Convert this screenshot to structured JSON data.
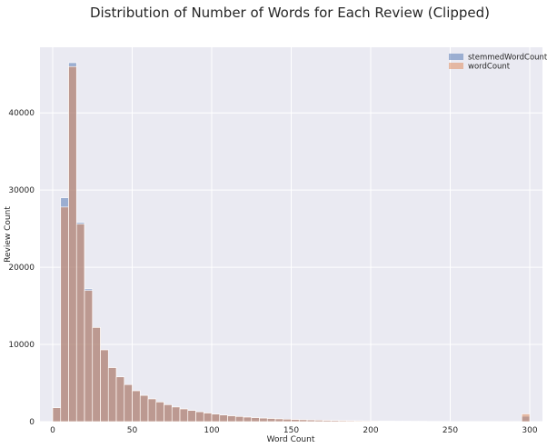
{
  "chart_data": {
    "type": "bar",
    "title": "Distribution of Number of Words for Each Review (Clipped)",
    "xlabel": "Word Count",
    "ylabel": "Review Count",
    "xlim": [
      -8,
      308
    ],
    "ylim": [
      0,
      48500
    ],
    "x_ticks": [
      0,
      50,
      100,
      150,
      200,
      250,
      300
    ],
    "y_ticks": [
      0,
      10000,
      20000,
      30000,
      40000
    ],
    "bin_edges_start": 0,
    "bin_width": 5,
    "grid": true,
    "legend_position": "top-right",
    "series": [
      {
        "name": "stemmedWordCount",
        "color": "#4c72b0",
        "values": [
          1800,
          29000,
          46500,
          25800,
          17200,
          12200,
          9300,
          7000,
          5800,
          4800,
          4000,
          3400,
          2950,
          2550,
          2200,
          1900,
          1650,
          1450,
          1280,
          1120,
          980,
          860,
          760,
          670,
          590,
          520,
          460,
          410,
          360,
          320,
          280,
          250,
          220,
          195,
          170,
          150,
          130,
          115,
          100,
          90,
          80,
          70,
          60,
          55,
          50,
          45,
          40,
          36,
          32,
          28,
          25,
          22,
          20,
          18,
          16,
          14,
          12,
          11,
          10,
          700
        ]
      },
      {
        "name": "wordCount",
        "color": "#dd8452",
        "values": [
          1800,
          27800,
          46000,
          25600,
          17000,
          12200,
          9300,
          7000,
          5800,
          4800,
          4000,
          3400,
          2950,
          2550,
          2200,
          1900,
          1650,
          1450,
          1280,
          1120,
          980,
          860,
          760,
          670,
          590,
          520,
          460,
          410,
          360,
          320,
          280,
          250,
          220,
          195,
          170,
          150,
          130,
          115,
          100,
          90,
          80,
          70,
          60,
          55,
          50,
          45,
          40,
          36,
          32,
          28,
          25,
          22,
          20,
          18,
          16,
          14,
          12,
          11,
          10,
          1000
        ]
      }
    ]
  }
}
